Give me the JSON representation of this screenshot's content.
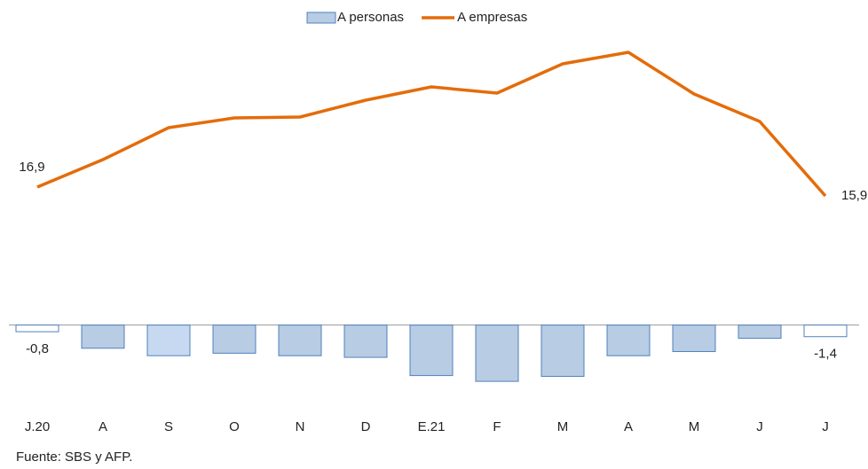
{
  "chart_data": {
    "type": "bar-line",
    "categories": [
      "J.20",
      "A",
      "S",
      "O",
      "N",
      "D",
      "E.21",
      "F",
      "M",
      "A",
      "M",
      "J",
      "J"
    ],
    "ylim": [
      -10,
      35
    ],
    "y2lim": [
      -8,
      34
    ],
    "series": [
      {
        "name": "A personas",
        "type": "bar",
        "color": "#b8cce4",
        "edge_color": "#4f81bd",
        "colors": [
          "#ffffff",
          "#b8cce4",
          "#c6d9f1",
          "#b8cce4",
          "#b8cce4",
          "#b8cce4",
          "#b8cce4",
          "#b8cce4",
          "#b8cce4",
          "#b8cce4",
          "#b8cce4",
          "#b8cce4",
          "#ffffff"
        ],
        "values": [
          -0.8,
          -2.8,
          -3.7,
          -3.4,
          -3.7,
          -3.9,
          -6.1,
          -6.8,
          -6.2,
          -3.7,
          -3.2,
          -1.6,
          -1.4
        ],
        "value_labels": [
          "-0,8",
          null,
          null,
          null,
          null,
          null,
          null,
          null,
          null,
          null,
          null,
          null,
          "-1,4"
        ]
      },
      {
        "name": "A empresas",
        "type": "line",
        "axis": "y2",
        "color": "#e46c0a",
        "values": [
          16.9,
          20.0,
          23.6,
          24.7,
          24.8,
          26.7,
          28.2,
          27.5,
          30.8,
          32.1,
          27.4,
          24.3,
          15.9
        ],
        "value_labels": [
          "16,9",
          null,
          null,
          null,
          null,
          null,
          null,
          null,
          null,
          null,
          null,
          null,
          "15,9"
        ]
      }
    ],
    "source": "Fuente: SBS y AFP."
  }
}
